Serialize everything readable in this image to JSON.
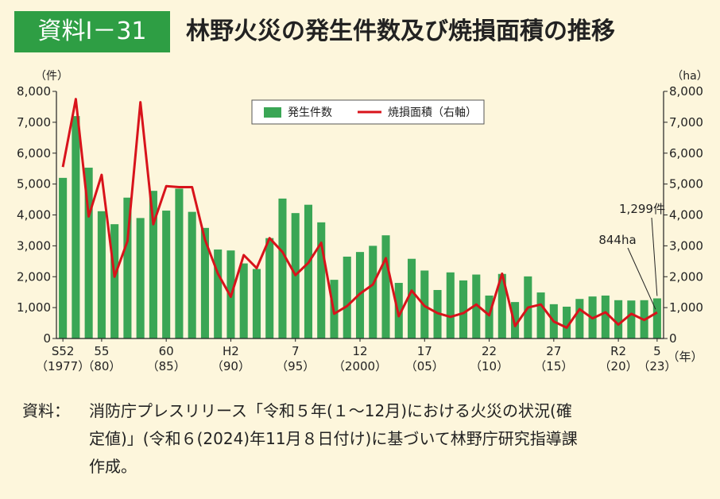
{
  "header": {
    "badge": "資料Ⅰ－31",
    "title": "林野火災の発生件数及び焼損面積の推移"
  },
  "chart_data": {
    "type": "bar",
    "title": "林野火災の発生件数及び焼損面積の推移",
    "left_unit": "（件）",
    "right_unit": "（ha）",
    "x_unit": "（年）",
    "ylim": [
      0,
      8000
    ],
    "y2lim": [
      0,
      8000
    ],
    "y_ticks": [
      "0",
      "1,000",
      "2,000",
      "3,000",
      "4,000",
      "5,000",
      "6,000",
      "7,000",
      "8,000"
    ],
    "y2_ticks": [
      "0",
      "1,000",
      "2,000",
      "3,000",
      "4,000",
      "5,000",
      "6,000",
      "7,000",
      "8,000"
    ],
    "x_tick_labels": [
      {
        "index": 0,
        "top": "S52",
        "bottom": "（1977）"
      },
      {
        "index": 3,
        "top": "55",
        "bottom": "（80）"
      },
      {
        "index": 8,
        "top": "60",
        "bottom": "（85）"
      },
      {
        "index": 13,
        "top": "H2",
        "bottom": "（90）"
      },
      {
        "index": 18,
        "top": "7",
        "bottom": "（95）"
      },
      {
        "index": 23,
        "top": "12",
        "bottom": "（2000）"
      },
      {
        "index": 28,
        "top": "17",
        "bottom": "（05）"
      },
      {
        "index": 33,
        "top": "22",
        "bottom": "（10）"
      },
      {
        "index": 38,
        "top": "27",
        "bottom": "（15）"
      },
      {
        "index": 43,
        "top": "R2",
        "bottom": "（20）"
      },
      {
        "index": 46,
        "top": "5",
        "bottom": "（23）"
      }
    ],
    "years": [
      1977,
      1978,
      1979,
      1980,
      1981,
      1982,
      1983,
      1984,
      1985,
      1986,
      1987,
      1988,
      1989,
      1990,
      1991,
      1992,
      1993,
      1994,
      1995,
      1996,
      1997,
      1998,
      1999,
      2000,
      2001,
      2002,
      2003,
      2004,
      2005,
      2006,
      2007,
      2008,
      2009,
      2010,
      2011,
      2012,
      2013,
      2014,
      2015,
      2016,
      2017,
      2018,
      2019,
      2020,
      2021,
      2022,
      2023
    ],
    "series": [
      {
        "name": "発生件数",
        "type": "bar",
        "color": "#3aa655",
        "axis": "left",
        "values": [
          5200,
          7200,
          5530,
          4120,
          3700,
          4560,
          3900,
          4780,
          4140,
          4850,
          4100,
          3580,
          2880,
          2850,
          2430,
          2250,
          3250,
          4530,
          4060,
          4330,
          3760,
          1900,
          2650,
          2800,
          3000,
          3340,
          1800,
          2580,
          2200,
          1570,
          2140,
          1880,
          2070,
          1390,
          2090,
          1180,
          2010,
          1490,
          1110,
          1030,
          1280,
          1360,
          1390,
          1240,
          1230,
          1240,
          1299
        ]
      },
      {
        "name": "焼損面積（右軸）",
        "type": "line",
        "color": "#d8131b",
        "axis": "right",
        "values": [
          5550,
          7750,
          3950,
          5300,
          2000,
          3150,
          7650,
          3700,
          4930,
          4900,
          4900,
          3200,
          2100,
          1350,
          2700,
          2280,
          3250,
          2800,
          2050,
          2450,
          3100,
          800,
          1050,
          1450,
          1750,
          2600,
          720,
          1550,
          1050,
          820,
          700,
          820,
          1100,
          750,
          2100,
          400,
          1000,
          1100,
          550,
          350,
          950,
          650,
          850,
          450,
          800,
          600,
          844
        ]
      }
    ],
    "legend_position": "top",
    "annotations": [
      {
        "text": "1,299件",
        "series": 0,
        "index": 46
      },
      {
        "text": "844ha",
        "series": 1,
        "index": 46
      }
    ]
  },
  "source": {
    "label": "資料：",
    "text": "消防庁プレスリリース「令和５年(１～12月)における火災の状況(確\n定値)」(令和６(2024)年11月８日付け)に基づいて林野庁研究指導課\n作成。"
  }
}
